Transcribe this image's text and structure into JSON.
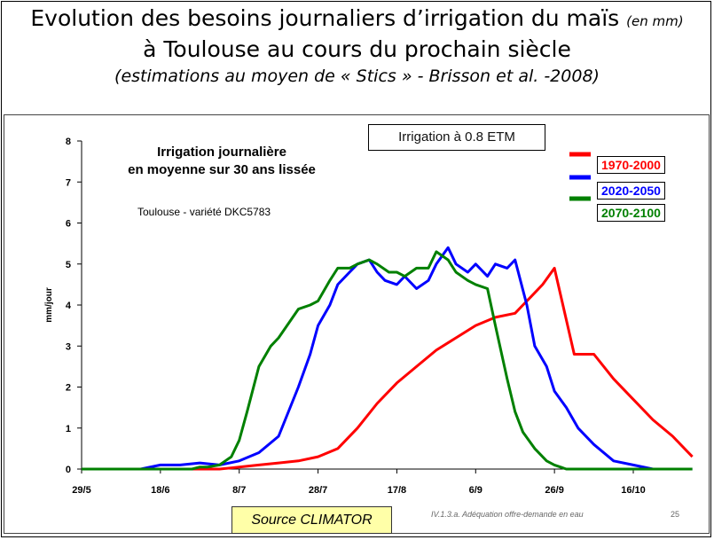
{
  "title": {
    "line1_main": "Evolution  des besoins journaliers d’irrigation du maïs",
    "line1_unit": "(en mm)",
    "line2": "à Toulouse au cours du prochain siècle",
    "line3": "(estimations au moyen de « Stics  » - Brisson et al. -2008)"
  },
  "irrigation_label": "Irrigation à 0.8 ETM",
  "source_label": "Source CLIMATOR",
  "footer_text": "IV.1.3.a. Adéquation offre-demande en eau",
  "page_number": "25",
  "colors": {
    "red": "#ff0000",
    "blue": "#0000ff",
    "green": "#008000"
  },
  "chart_data": {
    "type": "line",
    "title": "Irrigation journalière\nen moyenne sur 30 ans lissée",
    "subtitle": "Toulouse - variété DKC5783",
    "ylabel": "mm/jour",
    "xlabel": "",
    "ylim": [
      0,
      8
    ],
    "yticks": [
      "0",
      "1",
      "2",
      "3",
      "4",
      "5",
      "6",
      "7",
      "8"
    ],
    "xticks": [
      "29/5",
      "18/6",
      "8/7",
      "28/7",
      "17/8",
      "6/9",
      "26/9",
      "16/10"
    ],
    "x_day_range": [
      0,
      140
    ],
    "legend_position": "top-right",
    "series": [
      {
        "name": "1970-2000",
        "color": "#ff0000",
        "x": [
          0,
          20,
          30,
          35,
          40,
          45,
          50,
          55,
          60,
          65,
          70,
          75,
          80,
          85,
          90,
          95,
          100,
          105,
          110,
          112,
          114,
          117,
          120,
          125,
          130,
          135,
          140,
          145,
          150,
          155
        ],
        "y": [
          0,
          0,
          0,
          0,
          0.05,
          0.1,
          0.15,
          0.2,
          0.3,
          0.5,
          1.0,
          1.6,
          2.1,
          2.5,
          2.9,
          3.2,
          3.5,
          3.7,
          3.8,
          4.0,
          4.2,
          4.5,
          4.9,
          2.8,
          2.8,
          2.2,
          1.7,
          1.2,
          0.8,
          0.3
        ]
      },
      {
        "name": "2020-2050",
        "color": "#0000ff",
        "x": [
          0,
          15,
          20,
          25,
          30,
          35,
          40,
          45,
          50,
          55,
          58,
          60,
          63,
          65,
          68,
          70,
          73,
          75,
          77,
          80,
          82,
          85,
          88,
          90,
          93,
          95,
          98,
          100,
          103,
          105,
          108,
          110,
          113,
          115,
          118,
          120,
          123,
          126,
          130,
          135,
          140,
          145,
          150,
          155
        ],
        "y": [
          0,
          0,
          0.1,
          0.1,
          0.15,
          0.1,
          0.2,
          0.4,
          0.8,
          2.0,
          2.8,
          3.5,
          4.0,
          4.5,
          4.8,
          5.0,
          5.1,
          4.8,
          4.6,
          4.5,
          4.7,
          4.4,
          4.6,
          5.0,
          5.4,
          5.0,
          4.8,
          5.0,
          4.7,
          5.0,
          4.9,
          5.1,
          4.0,
          3.0,
          2.5,
          1.9,
          1.5,
          1.0,
          0.6,
          0.2,
          0.1,
          0,
          0,
          0
        ]
      },
      {
        "name": "2070-2100",
        "color": "#008000",
        "x": [
          0,
          20,
          25,
          28,
          30,
          32,
          35,
          38,
          40,
          42,
          45,
          48,
          50,
          55,
          58,
          60,
          63,
          65,
          68,
          70,
          73,
          75,
          78,
          80,
          82,
          85,
          88,
          90,
          93,
          95,
          98,
          100,
          103,
          105,
          108,
          110,
          112,
          115,
          118,
          120,
          123,
          125,
          130,
          135,
          140,
          145,
          150,
          155
        ],
        "y": [
          0,
          0,
          0,
          0,
          0.05,
          0.05,
          0.1,
          0.3,
          0.7,
          1.4,
          2.5,
          3.0,
          3.2,
          3.9,
          4.0,
          4.1,
          4.6,
          4.9,
          4.9,
          5.0,
          5.1,
          5.0,
          4.8,
          4.8,
          4.7,
          4.9,
          4.9,
          5.3,
          5.1,
          4.8,
          4.6,
          4.5,
          4.4,
          3.5,
          2.2,
          1.4,
          0.9,
          0.5,
          0.2,
          0.1,
          0,
          0,
          0,
          0,
          0,
          0,
          0,
          0
        ]
      }
    ]
  }
}
